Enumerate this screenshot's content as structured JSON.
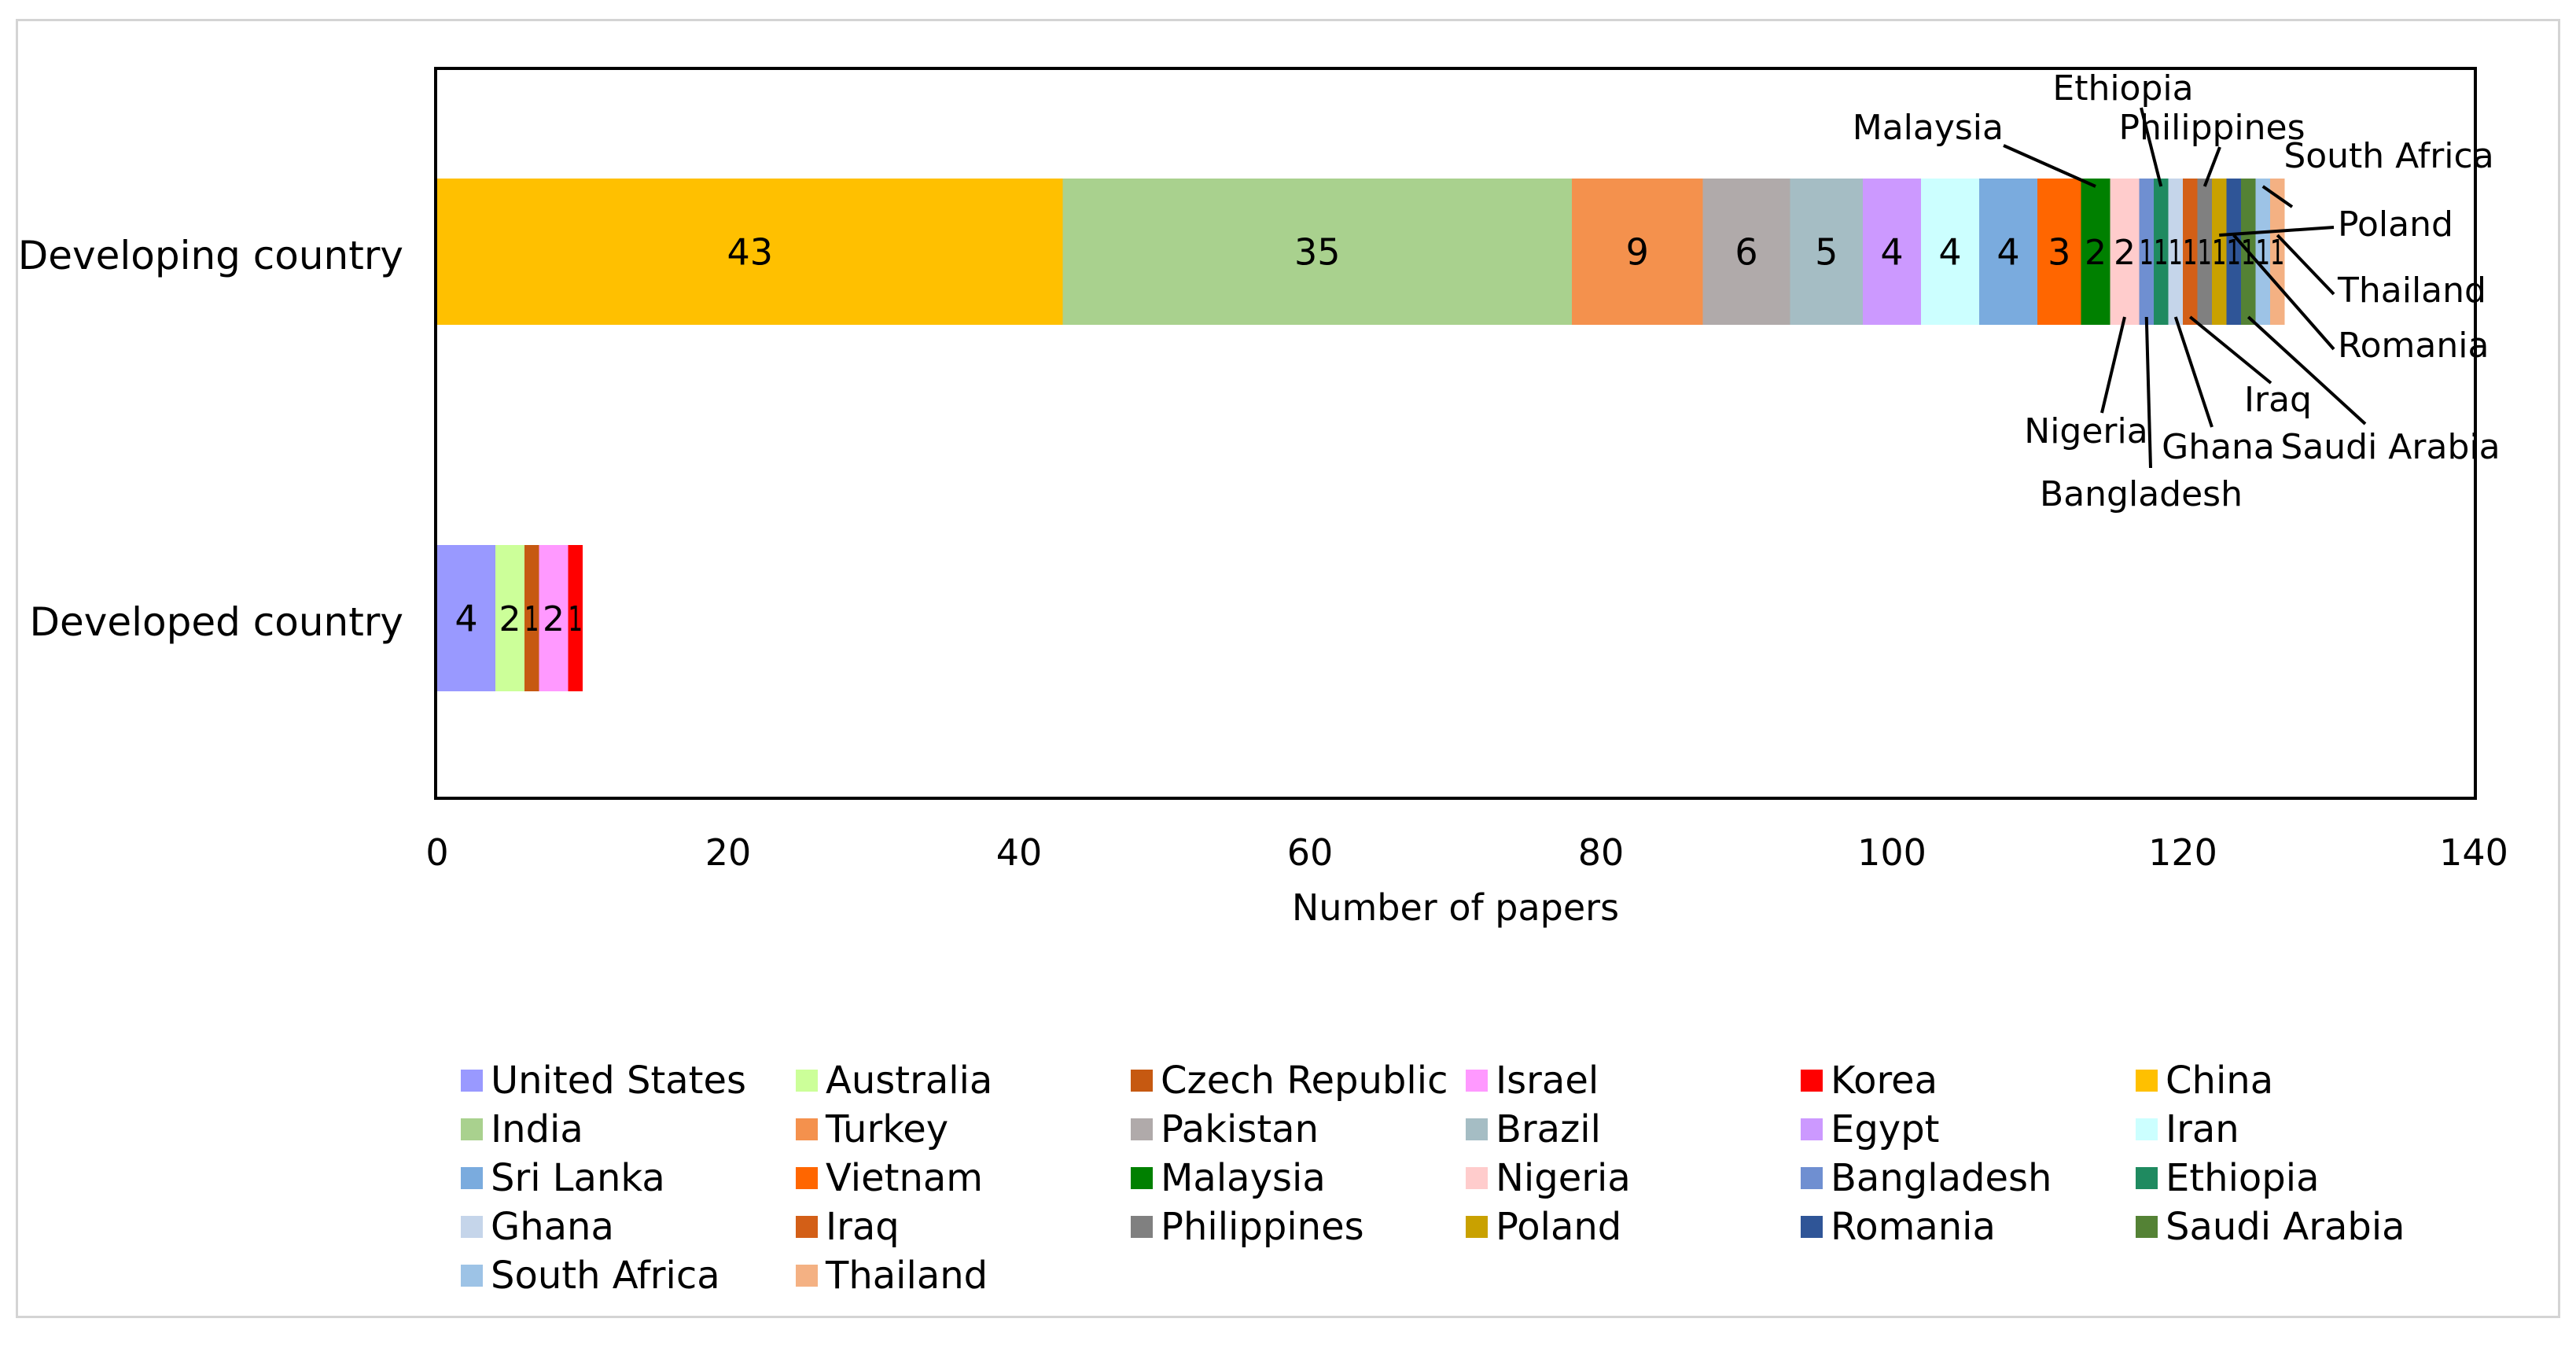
{
  "chart_data": {
    "type": "bar",
    "orientation": "horizontal",
    "stacked": true,
    "title": "",
    "xlabel": "Number of papers",
    "ylabel": "",
    "xlim": [
      0,
      140
    ],
    "xticks": [
      0,
      20,
      40,
      60,
      80,
      100,
      120,
      140
    ],
    "grid": false,
    "legend_position": "bottom",
    "categories": [
      "Developing country",
      "Developed country"
    ],
    "series": [
      {
        "name": "United States",
        "color": "#9999ff",
        "values": [
          0,
          4
        ]
      },
      {
        "name": "Australia",
        "color": "#ccff99",
        "values": [
          0,
          2
        ]
      },
      {
        "name": "Czech Republic",
        "color": "#c65911",
        "values": [
          0,
          1
        ]
      },
      {
        "name": "Israel",
        "color": "#ff99ff",
        "values": [
          0,
          2
        ]
      },
      {
        "name": "Korea",
        "color": "#ff0000",
        "values": [
          0,
          1
        ]
      },
      {
        "name": "China",
        "color": "#ffc000",
        "values": [
          43,
          0
        ]
      },
      {
        "name": "India",
        "color": "#a9d18e",
        "values": [
          35,
          0
        ]
      },
      {
        "name": "Turkey",
        "color": "#f4914d",
        "values": [
          9,
          0
        ]
      },
      {
        "name": "Pakistan",
        "color": "#b0aaaa",
        "values": [
          6,
          0
        ]
      },
      {
        "name": "Brazil",
        "color": "#a5bdc4",
        "values": [
          5,
          0
        ]
      },
      {
        "name": "Egypt",
        "color": "#cc99ff",
        "values": [
          4,
          0
        ]
      },
      {
        "name": "Iran",
        "color": "#ccffff",
        "values": [
          4,
          0
        ]
      },
      {
        "name": "Sri Lanka",
        "color": "#7aabde",
        "values": [
          4,
          0
        ]
      },
      {
        "name": "Vietnam",
        "color": "#ff6600",
        "values": [
          3,
          0
        ]
      },
      {
        "name": "Malaysia",
        "color": "#008000",
        "values": [
          2,
          0
        ]
      },
      {
        "name": "Nigeria",
        "color": "#ffcccc",
        "values": [
          2,
          0
        ]
      },
      {
        "name": "Bangladesh",
        "color": "#6f8fd1",
        "values": [
          1,
          0
        ]
      },
      {
        "name": "Ethiopia",
        "color": "#1f8a60",
        "values": [
          1,
          0
        ]
      },
      {
        "name": "Ghana",
        "color": "#c5d5ea",
        "values": [
          1,
          0
        ]
      },
      {
        "name": "Iraq",
        "color": "#d35f17",
        "values": [
          1,
          0
        ]
      },
      {
        "name": "Philippines",
        "color": "#808080",
        "values": [
          1,
          0
        ]
      },
      {
        "name": "Poland",
        "color": "#c9a100",
        "values": [
          1,
          0
        ]
      },
      {
        "name": "Romania",
        "color": "#2f5597",
        "values": [
          1,
          0
        ]
      },
      {
        "name": "Saudi Arabia",
        "color": "#548235",
        "values": [
          1,
          0
        ]
      },
      {
        "name": "South Africa",
        "color": "#9dc3e6",
        "values": [
          1,
          0
        ]
      },
      {
        "name": "Thailand",
        "color": "#f4b183",
        "values": [
          1,
          0
        ]
      }
    ],
    "annotations": [
      "Malaysia",
      "Ethiopia",
      "Philippines",
      "South Africa",
      "Poland",
      "Thailand",
      "Romania",
      "Iraq",
      "Saudi Arabia",
      "Nigeria",
      "Ghana",
      "Bangladesh"
    ]
  }
}
